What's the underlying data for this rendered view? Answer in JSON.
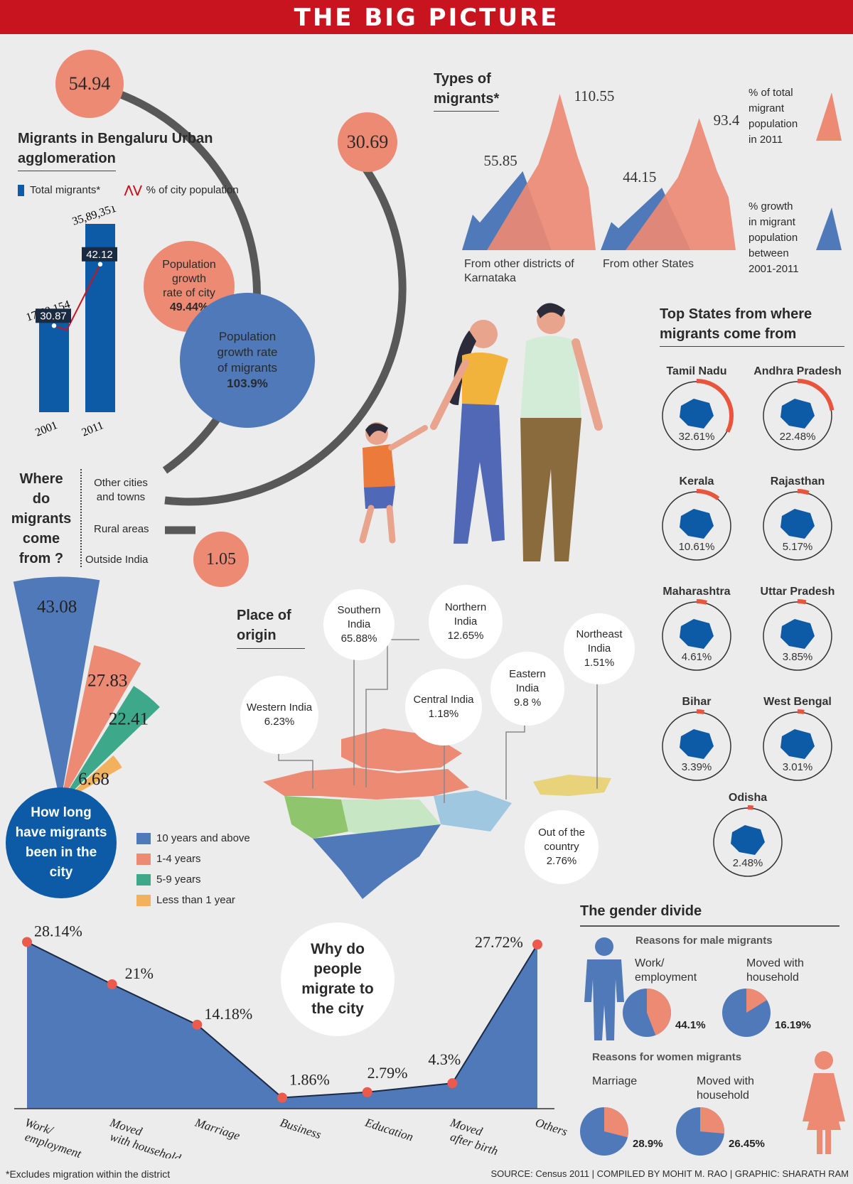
{
  "header": {
    "title": "THE BIG PICTURE"
  },
  "colors": {
    "blue": "#4f79b8",
    "dark_blue": "#0d5aa7",
    "salmon": "#ec8a74",
    "green": "#3ea88a",
    "yellow": "#f2b15c",
    "red": "#c8141e"
  },
  "origin_bubbles": {
    "top": "54.94",
    "middle": "30.69",
    "bottom": "1.05"
  },
  "bengaluru": {
    "title_line1": "Migrants in Bengaluru Urban",
    "title_line2": "agglomeration",
    "legend_total": "Total migrants*",
    "legend_pct": "% of city population",
    "pop_growth_city": {
      "l1": "Population",
      "l2": "growth",
      "l3": "rate of city",
      "value": "49.44%"
    },
    "pop_growth_migrants": {
      "l1": "Population",
      "l2": "growth rate",
      "l3": "of migrants",
      "value": "103.9%"
    }
  },
  "where": {
    "question_lines": [
      "Where",
      "do",
      "migrants",
      "come",
      "from ?"
    ],
    "labels": [
      "Other cities and towns",
      "Rural areas",
      "Outside India"
    ]
  },
  "types": {
    "title_line1": "Types of",
    "title_line2": "migrants*",
    "legend_pct_total": [
      "% of total",
      "migrant",
      "population",
      "in 2011"
    ],
    "legend_growth": [
      "% growth",
      "in migrant",
      "population",
      "between",
      "2001-2011"
    ]
  },
  "top_states": {
    "title_line1": "Top States from where",
    "title_line2": "migrants come from"
  },
  "place_of_origin": {
    "title_line1": "Place of",
    "title_line2": "origin",
    "regions": [
      {
        "name": "Western India",
        "pct": "6.23%"
      },
      {
        "name": "Southern India",
        "pct": "65.88%"
      },
      {
        "name": "Northern India",
        "pct": "12.65%"
      },
      {
        "name": "Central India",
        "pct": "1.18%"
      },
      {
        "name": "Eastern India",
        "pct": "9.8 %"
      },
      {
        "name": "Northeast India",
        "pct": "1.51%"
      },
      {
        "name": "Out of the country",
        "pct": "2.76%"
      }
    ]
  },
  "how_long": {
    "title_lines": [
      "How long",
      "have migrants",
      "been in the",
      "city"
    ]
  },
  "why": {
    "title_lines": [
      "Why do",
      "people",
      "migrate to",
      "the city"
    ]
  },
  "gender": {
    "title": "The gender divide",
    "male_title": "Reasons for male migrants",
    "female_title": "Reasons for women migrants",
    "male": [
      {
        "label": "Work/ employment",
        "pct_text": "44.1%",
        "value": 44.1
      },
      {
        "label": "Moved with household",
        "pct_text": "16.19%",
        "value": 16.19
      }
    ],
    "female": [
      {
        "label": "Marriage",
        "pct_text": "28.9%",
        "value": 28.9
      },
      {
        "label": "Moved with household",
        "pct_text": "26.45%",
        "value": 26.45
      }
    ]
  },
  "footer": {
    "note": "*Excludes migration within the district",
    "source": "SOURCE: Census 2011  | COMPILED BY MOHIT M. RAO | GRAPHIC: SHARATH  RAM"
  },
  "chart_data": [
    {
      "type": "bar",
      "title": "Migrants in Bengaluru Urban agglomeration",
      "categories": [
        "2001",
        "2011"
      ],
      "series": [
        {
          "name": "Total migrants*",
          "values": [
            1760154,
            3589351
          ],
          "value_labels": [
            "17,60,154",
            "35,89,351"
          ]
        },
        {
          "name": "% of city population",
          "values": [
            30.87,
            42.12
          ],
          "value_labels": [
            "30.87",
            "42.12"
          ]
        }
      ]
    },
    {
      "type": "area",
      "title": "Types of migrants*",
      "categories": [
        "From other districts of Karnataka",
        "From other States"
      ],
      "series": [
        {
          "name": "% of total migrant population in 2011",
          "values": [
            55.85,
            44.15
          ]
        },
        {
          "name": "% growth in migrant population between 2001-2011",
          "values": [
            110.55,
            93.4
          ]
        }
      ]
    },
    {
      "type": "pie",
      "title": "Top States from where migrants come from",
      "categories": [
        "Tamil Nadu",
        "Andhra Pradesh",
        "Kerala",
        "Rajasthan",
        "Maharashtra",
        "Uttar Pradesh",
        "Bihar",
        "West Bengal",
        "Odisha"
      ],
      "values": [
        32.61,
        22.48,
        10.61,
        5.17,
        4.61,
        3.85,
        3.39,
        3.01,
        2.48
      ],
      "value_labels": [
        "32.61%",
        "22.48%",
        "10.61%",
        "5.17%",
        "4.61%",
        "3.85%",
        "3.39%",
        "3.01%",
        "2.48%"
      ]
    },
    {
      "type": "bar",
      "title": "How long have migrants been in the city",
      "categories": [
        "10 years and above",
        "1-4 years",
        "5-9 years",
        "Less than 1 year"
      ],
      "values": [
        43.08,
        27.83,
        22.41,
        6.68
      ],
      "value_labels": [
        "43.08",
        "27.83",
        "22.41",
        "6.68"
      ]
    },
    {
      "type": "area",
      "title": "Why do people migrate to the city",
      "categories": [
        "Work/ employment",
        "Moved with household",
        "Marriage",
        "Business",
        "Education",
        "Moved after birth",
        "Others"
      ],
      "values": [
        28.14,
        21,
        14.18,
        1.86,
        2.79,
        4.3,
        27.72
      ],
      "value_labels": [
        "28.14%",
        "21%",
        "14.18%",
        "1.86%",
        "2.79%",
        "4.3%",
        "27.72%"
      ],
      "ylim": [
        0,
        30
      ]
    }
  ]
}
